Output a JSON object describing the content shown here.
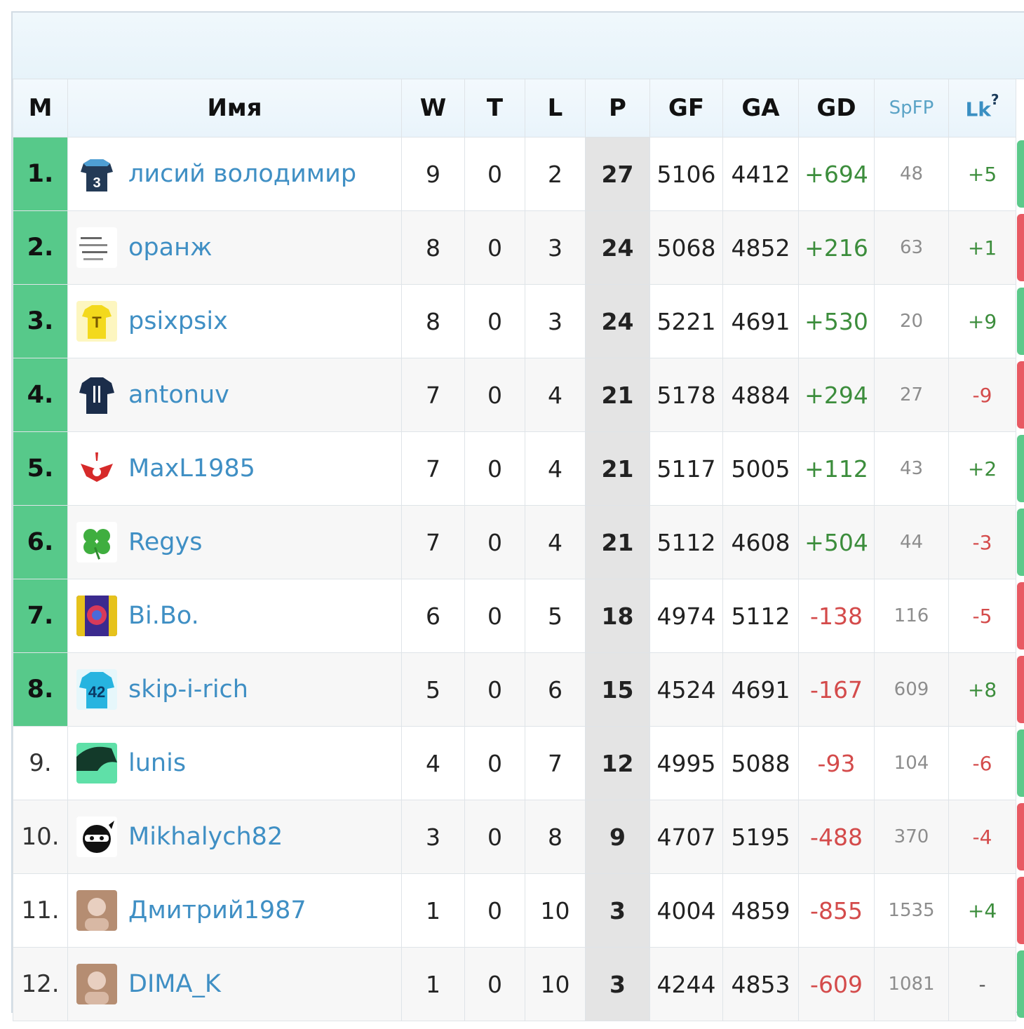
{
  "headers": {
    "pos": "М",
    "name": "Имя",
    "w": "W",
    "t": "T",
    "l": "L",
    "p": "P",
    "gf": "GF",
    "ga": "GA",
    "gd": "GD",
    "spfp": "SpFP",
    "lk": "Lk",
    "lk_help": "?"
  },
  "colors": {
    "promo": "#57c98a",
    "link": "#3f8fc4",
    "positive": "#3c8d3c",
    "negative": "#d44b4b",
    "form_win": "#5cc98a",
    "form_loss": "#e85a63"
  },
  "rows": [
    {
      "pos": "1.",
      "name": "лисий володимир",
      "avatar": "jersey-3-icon",
      "w": "9",
      "t": "0",
      "l": "2",
      "p": "27",
      "gf": "5106",
      "ga": "4412",
      "gd": "+694",
      "spfp": "48",
      "lk": "+5",
      "promo": true,
      "form": "win"
    },
    {
      "pos": "2.",
      "name": "оранж",
      "avatar": "text-logo-icon",
      "w": "8",
      "t": "0",
      "l": "3",
      "p": "24",
      "gf": "5068",
      "ga": "4852",
      "gd": "+216",
      "spfp": "63",
      "lk": "+1",
      "promo": true,
      "form": "loss"
    },
    {
      "pos": "3.",
      "name": "psixpsix",
      "avatar": "yellow-jersey-icon",
      "w": "8",
      "t": "0",
      "l": "3",
      "p": "24",
      "gf": "5221",
      "ga": "4691",
      "gd": "+530",
      "spfp": "20",
      "lk": "+9",
      "promo": true,
      "form": "win"
    },
    {
      "pos": "4.",
      "name": "antonuv",
      "avatar": "navy-jersey-icon",
      "w": "7",
      "t": "0",
      "l": "4",
      "p": "21",
      "gf": "5178",
      "ga": "4884",
      "gd": "+294",
      "spfp": "27",
      "lk": "-9",
      "promo": true,
      "form": "loss"
    },
    {
      "pos": "5.",
      "name": "MaxL1985",
      "avatar": "red-crest-icon",
      "w": "7",
      "t": "0",
      "l": "4",
      "p": "21",
      "gf": "5117",
      "ga": "5005",
      "gd": "+112",
      "spfp": "43",
      "lk": "+2",
      "promo": true,
      "form": "win"
    },
    {
      "pos": "6.",
      "name": "Regys",
      "avatar": "clover-icon",
      "w": "7",
      "t": "0",
      "l": "4",
      "p": "21",
      "gf": "5112",
      "ga": "4608",
      "gd": "+504",
      "spfp": "44",
      "lk": "-3",
      "promo": true,
      "form": "win"
    },
    {
      "pos": "7.",
      "name": "Bi.Bo.",
      "avatar": "purple-crest-icon",
      "w": "6",
      "t": "0",
      "l": "5",
      "p": "18",
      "gf": "4974",
      "ga": "5112",
      "gd": "-138",
      "spfp": "116",
      "lk": "-5",
      "promo": true,
      "form": "loss"
    },
    {
      "pos": "8.",
      "name": "skip-i-rich",
      "avatar": "jersey-42-icon",
      "w": "5",
      "t": "0",
      "l": "6",
      "p": "15",
      "gf": "4524",
      "ga": "4691",
      "gd": "-167",
      "spfp": "609",
      "lk": "+8",
      "promo": true,
      "form": "loss"
    },
    {
      "pos": "9.",
      "name": "lunis",
      "avatar": "dark-green-icon",
      "w": "4",
      "t": "0",
      "l": "7",
      "p": "12",
      "gf": "4995",
      "ga": "5088",
      "gd": "-93",
      "spfp": "104",
      "lk": "-6",
      "promo": false,
      "form": "win"
    },
    {
      "pos": "10.",
      "name": "Mikhalych82",
      "avatar": "ninja-icon",
      "w": "3",
      "t": "0",
      "l": "8",
      "p": "9",
      "gf": "4707",
      "ga": "5195",
      "gd": "-488",
      "spfp": "370",
      "lk": "-4",
      "promo": false,
      "form": "loss"
    },
    {
      "pos": "11.",
      "name": "Дмитрий1987",
      "avatar": "photo-avatar-icon",
      "w": "1",
      "t": "0",
      "l": "10",
      "p": "3",
      "gf": "4004",
      "ga": "4859",
      "gd": "-855",
      "spfp": "1535",
      "lk": "+4",
      "promo": false,
      "form": "loss"
    },
    {
      "pos": "12.",
      "name": "DIMA_K",
      "avatar": "photo-avatar-icon",
      "w": "1",
      "t": "0",
      "l": "10",
      "p": "3",
      "gf": "4244",
      "ga": "4853",
      "gd": "-609",
      "spfp": "1081",
      "lk": "-",
      "promo": false,
      "form": "win"
    }
  ]
}
